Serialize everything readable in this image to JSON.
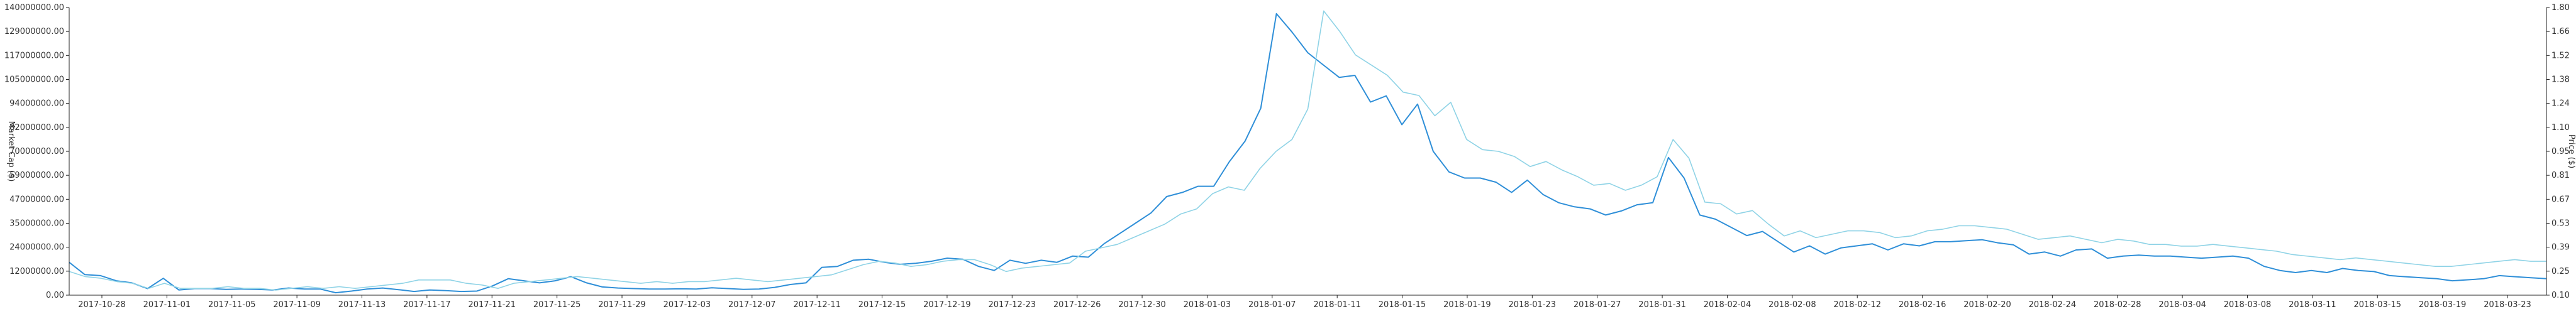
{
  "chart_data": {
    "type": "line",
    "title": "",
    "xlabel": "",
    "ylabel_left": "Market Cap ($)",
    "ylabel_right": "Price ($)",
    "y_left_range": [
      0,
      140000000
    ],
    "y_right_range": [
      0.1,
      1.8
    ],
    "y_left_ticks": [
      "0.00",
      "12000000.00",
      "24000000.00",
      "35000000.00",
      "47000000.00",
      "59000000.00",
      "70000000.00",
      "82000000.00",
      "94000000.00",
      "105000000.00",
      "117000000.00",
      "129000000.00",
      "140000000.00"
    ],
    "y_right_ticks": [
      "0.10",
      "0.25",
      "0.39",
      "0.53",
      "0.67",
      "0.81",
      "0.95",
      "1.10",
      "1.24",
      "1.38",
      "1.52",
      "1.66",
      "1.80"
    ],
    "x_tick_labels": [
      "2017-10-28",
      "2017-11-01",
      "2017-11-05",
      "2017-11-09",
      "2017-11-13",
      "2017-11-17",
      "2017-11-21",
      "2017-11-25",
      "2017-11-29",
      "2017-12-03",
      "2017-12-07",
      "2017-12-11",
      "2017-12-15",
      "2017-12-19",
      "2017-12-23",
      "2017-12-26",
      "2017-12-30",
      "2018-01-03",
      "2018-01-07",
      "2018-01-11",
      "2018-01-15",
      "2018-01-19",
      "2018-01-23",
      "2018-01-27",
      "2018-01-31",
      "2018-02-04",
      "2018-02-08",
      "2018-02-12",
      "2018-02-16",
      "2018-02-20",
      "2018-02-24",
      "2018-02-28",
      "2018-03-04",
      "2018-03-08",
      "2018-03-11",
      "2018-03-15",
      "2018-03-19",
      "2018-03-23"
    ],
    "grid": false,
    "colors": {
      "market_cap": "#2f8fd8",
      "price": "#8fd3e6"
    },
    "series": [
      {
        "axis": "left",
        "values": [
          16000000,
          10000000,
          9500000,
          7000000,
          6000000,
          3200000,
          8200000,
          2500000,
          3200000,
          3200000,
          2800000,
          3000000,
          2800000,
          2500000,
          3500000,
          3000000,
          3000000,
          1200000,
          2000000,
          3000000,
          3500000,
          2700000,
          1800000,
          2500000,
          2200000,
          1800000,
          2000000,
          4500000,
          8000000,
          7000000,
          6000000,
          7000000,
          9000000,
          6000000,
          4000000,
          3500000,
          3200000,
          3000000,
          3000000,
          3100000,
          3000000,
          3600000,
          3200000,
          2800000,
          3000000,
          3800000,
          5200000,
          6000000,
          13500000,
          14000000,
          17000000,
          17500000,
          16000000,
          15000000,
          15500000,
          16500000,
          18000000,
          17500000,
          14000000,
          12000000,
          17000000,
          15500000,
          17000000,
          16000000,
          19000000,
          18500000,
          25000000,
          30000000,
          35000000,
          40000000,
          48000000,
          50000000,
          53000000,
          53000000,
          65000000,
          75000000,
          91000000,
          137000000,
          128000000,
          118000000,
          112000000,
          106000000,
          107000000,
          94000000,
          97000000,
          83000000,
          93000000,
          70000000,
          60000000,
          57000000,
          57000000,
          55000000,
          50000000,
          56000000,
          49000000,
          45000000,
          43000000,
          42000000,
          39000000,
          41000000,
          44000000,
          45000000,
          67000000,
          57000000,
          39000000,
          37000000,
          33000000,
          29000000,
          31000000,
          26000000,
          21000000,
          24000000,
          20000000,
          23000000,
          24000000,
          25000000,
          22000000,
          25000000,
          24000000,
          26000000,
          26000000,
          26500000,
          27000000,
          25500000,
          24500000,
          20000000,
          21000000,
          19000000,
          22000000,
          22500000,
          18000000,
          19000000,
          19500000,
          19000000,
          19000000,
          18500000,
          18000000,
          18500000,
          19000000,
          18000000,
          14000000,
          12000000,
          11000000,
          12000000,
          11000000,
          13000000,
          12000000,
          11500000,
          9500000,
          9000000,
          8500000,
          8000000,
          7000000,
          7500000,
          8000000,
          9500000,
          9000000,
          8500000,
          8000000
        ]
      },
      {
        "axis": "right",
        "values": [
          0.24,
          0.21,
          0.2,
          0.18,
          0.17,
          0.14,
          0.17,
          0.14,
          0.14,
          0.14,
          0.15,
          0.14,
          0.14,
          0.13,
          0.14,
          0.15,
          0.14,
          0.15,
          0.14,
          0.15,
          0.16,
          0.17,
          0.19,
          0.19,
          0.19,
          0.17,
          0.16,
          0.14,
          0.17,
          0.18,
          0.19,
          0.2,
          0.21,
          0.2,
          0.19,
          0.18,
          0.17,
          0.18,
          0.17,
          0.18,
          0.18,
          0.19,
          0.2,
          0.19,
          0.18,
          0.19,
          0.2,
          0.21,
          0.22,
          0.25,
          0.28,
          0.3,
          0.29,
          0.27,
          0.28,
          0.3,
          0.31,
          0.31,
          0.28,
          0.24,
          0.26,
          0.27,
          0.28,
          0.29,
          0.36,
          0.38,
          0.4,
          0.44,
          0.48,
          0.52,
          0.58,
          0.61,
          0.7,
          0.74,
          0.72,
          0.85,
          0.95,
          1.02,
          1.2,
          1.78,
          1.66,
          1.52,
          1.46,
          1.4,
          1.3,
          1.28,
          1.16,
          1.24,
          1.02,
          0.96,
          0.95,
          0.92,
          0.86,
          0.89,
          0.84,
          0.8,
          0.75,
          0.76,
          0.72,
          0.75,
          0.8,
          1.02,
          0.91,
          0.65,
          0.64,
          0.58,
          0.6,
          0.52,
          0.45,
          0.48,
          0.44,
          0.46,
          0.48,
          0.48,
          0.47,
          0.44,
          0.45,
          0.48,
          0.49,
          0.51,
          0.51,
          0.5,
          0.49,
          0.46,
          0.43,
          0.44,
          0.45,
          0.43,
          0.41,
          0.43,
          0.42,
          0.4,
          0.4,
          0.39,
          0.39,
          0.4,
          0.39,
          0.38,
          0.37,
          0.36,
          0.34,
          0.33,
          0.32,
          0.31,
          0.32,
          0.31,
          0.3,
          0.29,
          0.28,
          0.27,
          0.27,
          0.28,
          0.29,
          0.3,
          0.31,
          0.3,
          0.3
        ]
      }
    ]
  }
}
